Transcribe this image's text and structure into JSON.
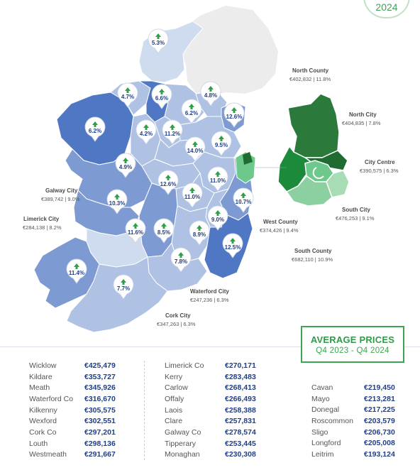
{
  "header": {
    "year_badge": "2024"
  },
  "colors": {
    "county_dark": "#4f77c4",
    "county_mid": "#7d9bd2",
    "county_light": "#afc2e4",
    "county_pale": "#cfdbef",
    "northern_ireland": "#ececec",
    "dublin_north_county": "#2c7a3b",
    "dublin_north_city": "#1f6b30",
    "dublin_city_centre": "#6cc98b",
    "dublin_west_county": "#1b8a3a",
    "dublin_south_city": "#a7dcb5",
    "dublin_south_county": "#8ccfa0",
    "price_text": "#1f3f8a",
    "accent_green": "#3ea453"
  },
  "map_pins": [
    {
      "id": "donegal",
      "label": "5.3%"
    },
    {
      "id": "sligo",
      "label": "4.7%"
    },
    {
      "id": "leitrim",
      "label": "6.6%"
    },
    {
      "id": "cavan",
      "label": "6.2%"
    },
    {
      "id": "monaghan",
      "label": "4.8%"
    },
    {
      "id": "louth",
      "label": "12.6%"
    },
    {
      "id": "mayo",
      "label": "6.2%"
    },
    {
      "id": "roscommon",
      "label": "4.2%"
    },
    {
      "id": "longford",
      "label": "11.2%"
    },
    {
      "id": "westmeath",
      "label": "14.0%"
    },
    {
      "id": "meath",
      "label": "9.5%"
    },
    {
      "id": "galway_co",
      "label": "4.9%"
    },
    {
      "id": "offaly",
      "label": "12.6%"
    },
    {
      "id": "kildare",
      "label": "11.0%"
    },
    {
      "id": "wicklow",
      "label": "10.7%"
    },
    {
      "id": "laois",
      "label": "11.0%"
    },
    {
      "id": "galway_city",
      "label": "10.3%"
    },
    {
      "id": "carlow",
      "label": "9.0%"
    },
    {
      "id": "clare",
      "label": "11.6%"
    },
    {
      "id": "tipperary",
      "label": "8.5%"
    },
    {
      "id": "kilkenny",
      "label": "8.9%"
    },
    {
      "id": "wexford",
      "label": "12.5%"
    },
    {
      "id": "waterford_co",
      "label": "7.8%"
    },
    {
      "id": "kerry",
      "label": "11.4%"
    },
    {
      "id": "cork_co",
      "label": "7.7%"
    }
  ],
  "city_labels": [
    {
      "id": "galway-city",
      "name": "Galway City",
      "value": "€389,742  |  9.0%"
    },
    {
      "id": "limerick-city",
      "name": "Limerick City",
      "value": "€284,138  |  8.2%"
    },
    {
      "id": "waterford-city",
      "name": "Waterford City",
      "value": "€247,236  |  6.3%"
    },
    {
      "id": "cork-city",
      "name": "Cork City",
      "value": "€347,263  |  6.3%"
    }
  ],
  "dublin_labels": [
    {
      "id": "north-county",
      "name": "North County",
      "value": "€402,832  |  11.8%"
    },
    {
      "id": "north-city",
      "name": "North City",
      "value": "€404,835  |  7.8%"
    },
    {
      "id": "city-centre",
      "name": "City Centre",
      "value": "€390,575  |  6.3%"
    },
    {
      "id": "south-city",
      "name": "South City",
      "value": "€476,253  |  9.1%"
    },
    {
      "id": "west-county",
      "name": "West County",
      "value": "€374,426  |  9.4%"
    },
    {
      "id": "south-county",
      "name": "South County",
      "value": "€682,110  |  10.9%"
    }
  ],
  "average_prices": {
    "title": "AVERAGE PRICES",
    "period": "Q4 2023 - Q4 2024"
  },
  "price_columns": [
    [
      {
        "county": "Wicklow",
        "price": "€425,479"
      },
      {
        "county": "Kildare",
        "price": "€353,727"
      },
      {
        "county": "Meath",
        "price": "€345,926"
      },
      {
        "county": "Waterford Co",
        "price": "€316,670"
      },
      {
        "county": "Kilkenny",
        "price": "€305,575"
      },
      {
        "county": "Wexford",
        "price": "€302,551"
      },
      {
        "county": "Cork Co",
        "price": "€297,201"
      },
      {
        "county": "Louth",
        "price": "€298,136"
      },
      {
        "county": "Westmeath",
        "price": "€291,667"
      }
    ],
    [
      {
        "county": "Limerick Co",
        "price": "€270,171"
      },
      {
        "county": "Kerry",
        "price": "€283,483"
      },
      {
        "county": "Carlow",
        "price": "€268,413"
      },
      {
        "county": "Offaly",
        "price": "€266,493"
      },
      {
        "county": "Laois",
        "price": "€258,388"
      },
      {
        "county": "Clare",
        "price": "€257,831"
      },
      {
        "county": "Galway Co",
        "price": "€278,574"
      },
      {
        "county": "Tipperary",
        "price": "€253,445"
      },
      {
        "county": "Monaghan",
        "price": "€230,308"
      }
    ],
    [
      {
        "county": "Cavan",
        "price": "€219,450"
      },
      {
        "county": "Mayo",
        "price": "€213,281"
      },
      {
        "county": "Donegal",
        "price": "€217,225"
      },
      {
        "county": "Roscommon",
        "price": "€203,579"
      },
      {
        "county": "Sligo",
        "price": "€206,730"
      },
      {
        "county": "Longford",
        "price": "€205,008"
      },
      {
        "county": "Leitrim",
        "price": "€193,124"
      }
    ]
  ]
}
